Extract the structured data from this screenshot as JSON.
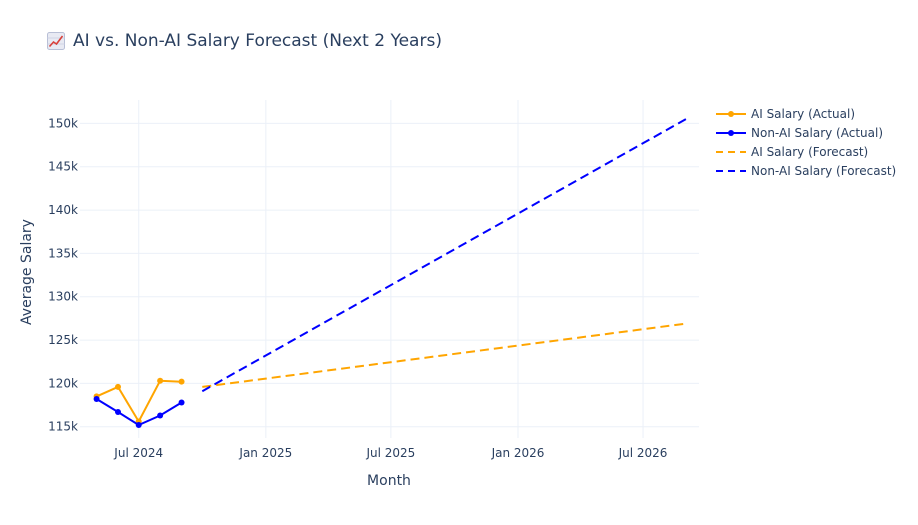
{
  "chart_data": {
    "type": "line",
    "title": "AI vs. Non-AI Salary Forecast (Next 2 Years)",
    "title_icon": "chart-increasing-icon",
    "xlabel": "Month",
    "ylabel": "Average Salary",
    "x_ticks": [
      "2024-07-01",
      "2025-01-01",
      "2025-07-01",
      "2026-01-01",
      "2026-07-01"
    ],
    "x_tick_labels": [
      "Jul 2024",
      "Jan 2025",
      "Jul 2025",
      "Jan 2026",
      "Jul 2026"
    ],
    "y_ticks": [
      115000,
      120000,
      125000,
      130000,
      135000,
      140000,
      145000,
      150000
    ],
    "y_tick_labels": [
      "115k",
      "120k",
      "125k",
      "130k",
      "135k",
      "140k",
      "145k",
      "150k"
    ],
    "xlim": [
      "2024-04-07",
      "2026-09-20"
    ],
    "ylim": [
      113700,
      152700
    ],
    "grid": true,
    "legend_position": "top-right, outside plot",
    "series": [
      {
        "name": "AI Salary (Actual)",
        "color": "#ffa500",
        "style": "solid",
        "markers": true,
        "points": [
          {
            "x": "2024-05-01",
            "y": 118500
          },
          {
            "x": "2024-06-01",
            "y": 119600
          },
          {
            "x": "2024-07-01",
            "y": 115600
          },
          {
            "x": "2024-08-01",
            "y": 120300
          },
          {
            "x": "2024-09-01",
            "y": 120200
          }
        ]
      },
      {
        "name": "Non-AI Salary (Actual)",
        "color": "#0000ff",
        "style": "solid",
        "markers": true,
        "points": [
          {
            "x": "2024-05-01",
            "y": 118200
          },
          {
            "x": "2024-06-01",
            "y": 116700
          },
          {
            "x": "2024-07-01",
            "y": 115200
          },
          {
            "x": "2024-08-01",
            "y": 116300
          },
          {
            "x": "2024-09-01",
            "y": 117800
          }
        ]
      },
      {
        "name": "AI Salary (Forecast)",
        "color": "#ffa500",
        "style": "dash",
        "markers": false,
        "points": [
          {
            "x": "2024-10-01",
            "y": 119600
          },
          {
            "x": "2026-09-01",
            "y": 126900
          }
        ]
      },
      {
        "name": "Non-AI Salary (Forecast)",
        "color": "#0000ff",
        "style": "dash",
        "markers": false,
        "points": [
          {
            "x": "2024-10-01",
            "y": 119100
          },
          {
            "x": "2026-09-01",
            "y": 150500
          }
        ]
      }
    ]
  }
}
